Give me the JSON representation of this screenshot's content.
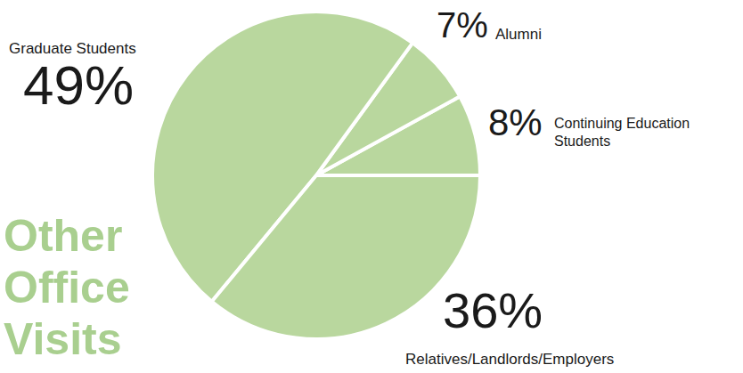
{
  "chart_data": {
    "type": "pie",
    "title": "Other Office Visits",
    "categories": [
      "Continuing Education Students",
      "Alumni",
      "Graduate Students",
      "Relatives/Landlords/Employers"
    ],
    "values": [
      8,
      7,
      49,
      36
    ],
    "value_labels": [
      "8%",
      "7%",
      "49%",
      "36%"
    ],
    "color": "#b9d79e",
    "data_labels": true
  }
}
